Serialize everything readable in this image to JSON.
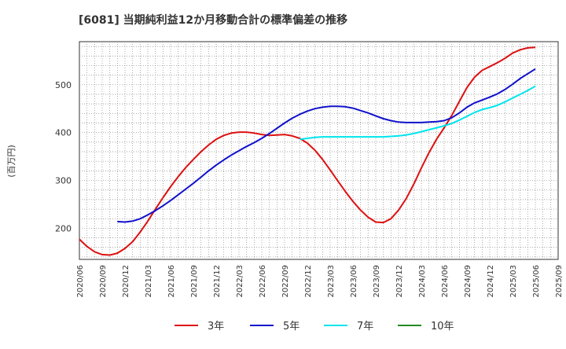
{
  "chart_data": {
    "type": "line",
    "title": "[6081]  当期純利益12か月移動合計の標準偏差の推移",
    "ylabel": "(百万円)",
    "xlabel": "",
    "x_ticks": [
      "2020/06",
      "2020/09",
      "2020/12",
      "2021/03",
      "2021/06",
      "2021/09",
      "2021/12",
      "2022/03",
      "2022/06",
      "2022/09",
      "2022/12",
      "2023/03",
      "2023/06",
      "2023/09",
      "2023/12",
      "2024/03",
      "2024/06",
      "2024/09",
      "2024/12",
      "2025/03",
      "2025/06",
      "2025/09"
    ],
    "y_ticks": [
      200,
      300,
      400,
      500
    ],
    "xlim": [
      "2020/06",
      "2025/09"
    ],
    "ylim": [
      135,
      590
    ],
    "grid": true,
    "legend_position": "bottom",
    "series": [
      {
        "name": "3年",
        "color": "#dd1111",
        "points": [
          [
            "2020/06",
            177
          ],
          [
            "2020/07",
            162
          ],
          [
            "2020/08",
            151
          ],
          [
            "2020/09",
            145
          ],
          [
            "2020/10",
            144
          ],
          [
            "2020/11",
            148
          ],
          [
            "2020/12",
            158
          ],
          [
            "2021/01",
            172
          ],
          [
            "2021/02",
            192
          ],
          [
            "2021/03",
            215
          ],
          [
            "2021/04",
            240
          ],
          [
            "2021/05",
            264
          ],
          [
            "2021/06",
            287
          ],
          [
            "2021/07",
            308
          ],
          [
            "2021/08",
            327
          ],
          [
            "2021/09",
            344
          ],
          [
            "2021/10",
            360
          ],
          [
            "2021/11",
            374
          ],
          [
            "2021/12",
            386
          ],
          [
            "2022/01",
            394
          ],
          [
            "2022/02",
            399
          ],
          [
            "2022/03",
            401
          ],
          [
            "2022/04",
            401
          ],
          [
            "2022/05",
            399
          ],
          [
            "2022/06",
            396
          ],
          [
            "2022/07",
            394
          ],
          [
            "2022/08",
            395
          ],
          [
            "2022/09",
            396
          ],
          [
            "2022/10",
            393
          ],
          [
            "2022/11",
            388
          ],
          [
            "2022/12",
            378
          ],
          [
            "2023/01",
            363
          ],
          [
            "2023/02",
            344
          ],
          [
            "2023/03",
            322
          ],
          [
            "2023/04",
            299
          ],
          [
            "2023/05",
            277
          ],
          [
            "2023/06",
            256
          ],
          [
            "2023/07",
            238
          ],
          [
            "2023/08",
            223
          ],
          [
            "2023/09",
            213
          ],
          [
            "2023/10",
            212
          ],
          [
            "2023/11",
            220
          ],
          [
            "2023/12",
            238
          ],
          [
            "2024/01",
            262
          ],
          [
            "2024/02",
            292
          ],
          [
            "2024/03",
            326
          ],
          [
            "2024/04",
            358
          ],
          [
            "2024/05",
            386
          ],
          [
            "2024/06",
            410
          ],
          [
            "2024/07",
            436
          ],
          [
            "2024/08",
            465
          ],
          [
            "2024/09",
            494
          ],
          [
            "2024/10",
            516
          ],
          [
            "2024/11",
            530
          ],
          [
            "2024/12",
            538
          ],
          [
            "2025/01",
            546
          ],
          [
            "2025/02",
            555
          ],
          [
            "2025/03",
            566
          ],
          [
            "2025/04",
            573
          ],
          [
            "2025/05",
            577
          ],
          [
            "2025/06",
            578
          ]
        ]
      },
      {
        "name": "5年",
        "color": "#1111cc",
        "points": [
          [
            "2020/11",
            214
          ],
          [
            "2020/12",
            213
          ],
          [
            "2021/01",
            215
          ],
          [
            "2021/02",
            220
          ],
          [
            "2021/03",
            228
          ],
          [
            "2021/04",
            237
          ],
          [
            "2021/05",
            247
          ],
          [
            "2021/06",
            258
          ],
          [
            "2021/07",
            270
          ],
          [
            "2021/08",
            282
          ],
          [
            "2021/09",
            294
          ],
          [
            "2021/10",
            307
          ],
          [
            "2021/11",
            320
          ],
          [
            "2021/12",
            332
          ],
          [
            "2022/01",
            343
          ],
          [
            "2022/02",
            353
          ],
          [
            "2022/03",
            362
          ],
          [
            "2022/04",
            371
          ],
          [
            "2022/05",
            379
          ],
          [
            "2022/06",
            388
          ],
          [
            "2022/07",
            398
          ],
          [
            "2022/08",
            409
          ],
          [
            "2022/09",
            420
          ],
          [
            "2022/10",
            430
          ],
          [
            "2022/11",
            438
          ],
          [
            "2022/12",
            445
          ],
          [
            "2023/01",
            450
          ],
          [
            "2023/02",
            453
          ],
          [
            "2023/03",
            455
          ],
          [
            "2023/04",
            455
          ],
          [
            "2023/05",
            454
          ],
          [
            "2023/06",
            451
          ],
          [
            "2023/07",
            446
          ],
          [
            "2023/08",
            441
          ],
          [
            "2023/09",
            435
          ],
          [
            "2023/10",
            429
          ],
          [
            "2023/11",
            425
          ],
          [
            "2023/12",
            422
          ],
          [
            "2024/01",
            421
          ],
          [
            "2024/02",
            421
          ],
          [
            "2024/03",
            421
          ],
          [
            "2024/04",
            422
          ],
          [
            "2024/05",
            423
          ],
          [
            "2024/06",
            425
          ],
          [
            "2024/07",
            431
          ],
          [
            "2024/08",
            441
          ],
          [
            "2024/09",
            453
          ],
          [
            "2024/10",
            462
          ],
          [
            "2024/11",
            468
          ],
          [
            "2024/12",
            474
          ],
          [
            "2025/01",
            481
          ],
          [
            "2025/02",
            490
          ],
          [
            "2025/03",
            501
          ],
          [
            "2025/04",
            513
          ],
          [
            "2025/05",
            523
          ],
          [
            "2025/06",
            533
          ]
        ]
      },
      {
        "name": "7年",
        "color": "#00e5ee",
        "points": [
          [
            "2022/11",
            386
          ],
          [
            "2022/12",
            388
          ],
          [
            "2023/01",
            390
          ],
          [
            "2023/02",
            391
          ],
          [
            "2023/03",
            391
          ],
          [
            "2023/04",
            391
          ],
          [
            "2023/05",
            391
          ],
          [
            "2023/06",
            391
          ],
          [
            "2023/07",
            391
          ],
          [
            "2023/08",
            391
          ],
          [
            "2023/09",
            391
          ],
          [
            "2023/10",
            391
          ],
          [
            "2023/11",
            392
          ],
          [
            "2023/12",
            393
          ],
          [
            "2024/01",
            395
          ],
          [
            "2024/02",
            398
          ],
          [
            "2024/03",
            402
          ],
          [
            "2024/04",
            406
          ],
          [
            "2024/05",
            410
          ],
          [
            "2024/06",
            414
          ],
          [
            "2024/07",
            419
          ],
          [
            "2024/08",
            426
          ],
          [
            "2024/09",
            434
          ],
          [
            "2024/10",
            442
          ],
          [
            "2024/11",
            448
          ],
          [
            "2024/12",
            452
          ],
          [
            "2025/01",
            457
          ],
          [
            "2025/02",
            464
          ],
          [
            "2025/03",
            472
          ],
          [
            "2025/04",
            480
          ],
          [
            "2025/05",
            488
          ],
          [
            "2025/06",
            497
          ]
        ]
      },
      {
        "name": "10年",
        "color": "#228b22",
        "points": []
      }
    ]
  }
}
